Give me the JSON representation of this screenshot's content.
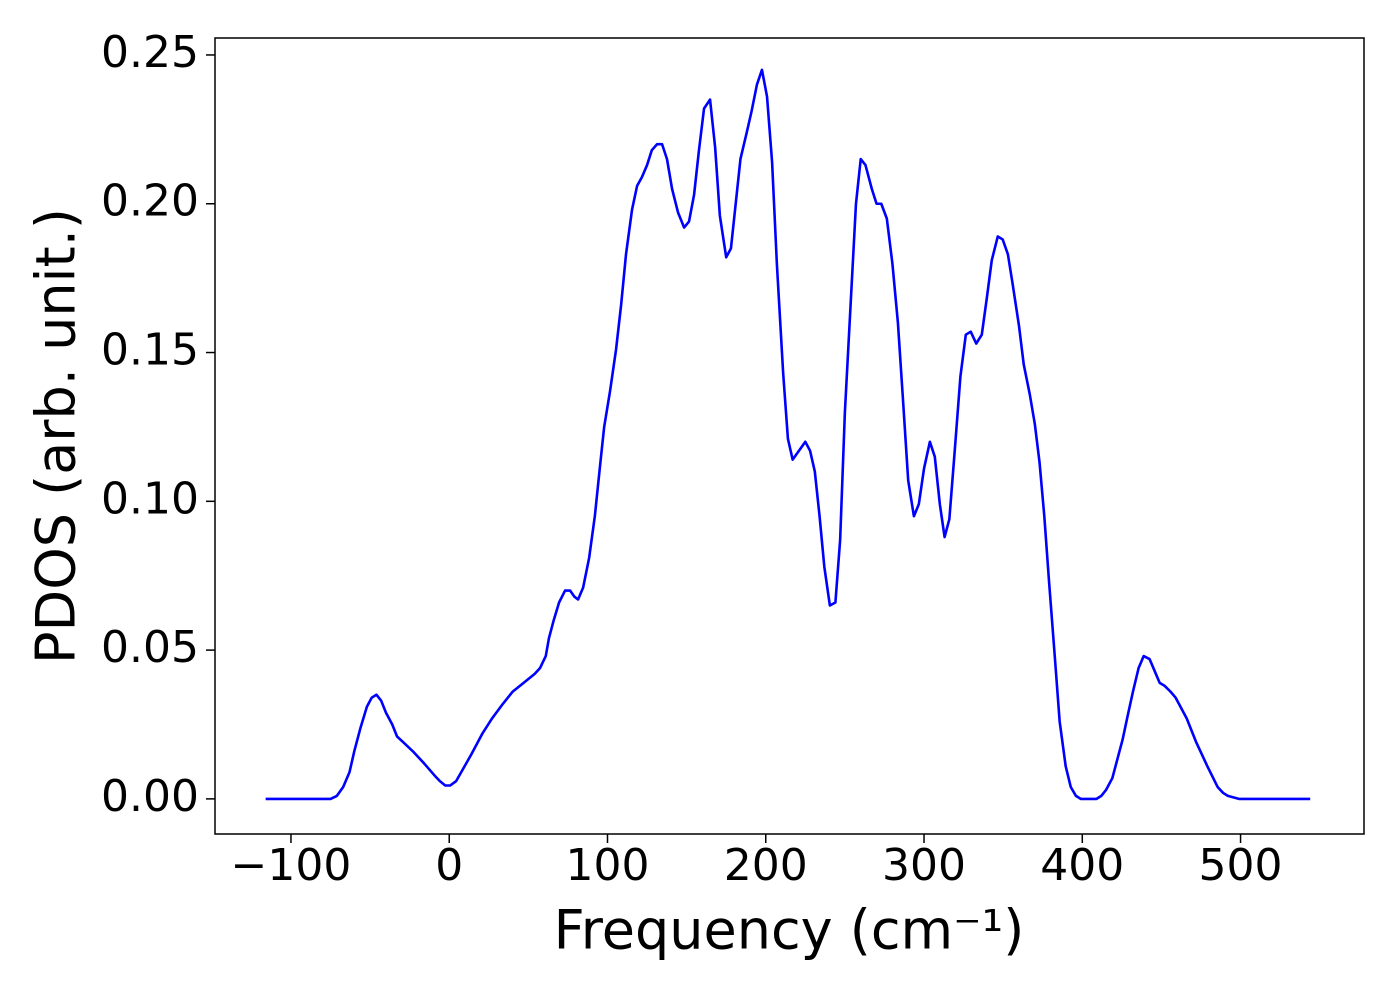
{
  "chart_data": {
    "type": "line",
    "xlabel": "Frequency (cm⁻¹)",
    "ylabel": "PDOS (arb. unit.)",
    "color": "#0000ff",
    "xlim": [
      -148,
      578
    ],
    "ylim": [
      -0.0118,
      0.2557
    ],
    "xticks": [
      {
        "value": -100,
        "label": "−100"
      },
      0,
      100,
      200,
      300,
      400,
      500
    ],
    "yticks": [
      {
        "value": 0,
        "label": "0.00"
      },
      {
        "value": 0.05,
        "label": "0.05"
      },
      {
        "value": 0.1,
        "label": "0.10"
      },
      {
        "value": 0.15,
        "label": "0.15"
      },
      {
        "value": 0.2,
        "label": "0.20"
      },
      {
        "value": 0.25,
        "label": "0.25"
      }
    ],
    "grid": false,
    "x": [
      -116,
      -75,
      -71,
      -67,
      -63,
      -60,
      -56,
      -52,
      -49,
      -46,
      -43,
      -40,
      -36,
      -33,
      -29,
      -23,
      -16,
      -9.5,
      -6,
      -2.5,
      0.6,
      4.4,
      7.6,
      14,
      21,
      27,
      34,
      40,
      47,
      54,
      57.4,
      61,
      63,
      66,
      69.4,
      73.2,
      76.4,
      79,
      81.4,
      84.6,
      88.4,
      92,
      95.3,
      97.9,
      101.6,
      105.4,
      108.6,
      111.7,
      115.5,
      118.7,
      121.8,
      125,
      128,
      131.3,
      134.5,
      137.6,
      140.8,
      144.6,
      148.4,
      151.5,
      154.7,
      157.8,
      161,
      164.8,
      168,
      171,
      175,
      178,
      181,
      184,
      188,
      191,
      194.4,
      197.6,
      200.8,
      204,
      207,
      211,
      214,
      217,
      225,
      228,
      231,
      234,
      237,
      240.5,
      244,
      247,
      250,
      254,
      257,
      260,
      263,
      267,
      270,
      273,
      276.5,
      280,
      283.5,
      286.6,
      290,
      293.6,
      296.7,
      300,
      303.7,
      306.8,
      310,
      313,
      316,
      319.4,
      323,
      326.4,
      329.5,
      333,
      336.5,
      339.6,
      342.8,
      346.6,
      349.7,
      353,
      356,
      360,
      363,
      366.8,
      370,
      373,
      376,
      379,
      382.6,
      385.7,
      389.5,
      392.7,
      396,
      399,
      409,
      412,
      415,
      419,
      422,
      425.5,
      428.7,
      432,
      435.6,
      438.8,
      442.5,
      445.7,
      448.9,
      452,
      455.8,
      459,
      462,
      466,
      472,
      479,
      485.5,
      489,
      492,
      499,
      544
    ],
    "values": [
      0,
      0,
      0.001,
      0.004,
      0.009,
      0.016,
      0.024,
      0.031,
      0.034,
      0.035,
      0.033,
      0.029,
      0.025,
      0.021,
      0.019,
      0.016,
      0.012,
      0.008,
      0.006,
      0.0045,
      0.0045,
      0.006,
      0.009,
      0.015,
      0.022,
      0.027,
      0.032,
      0.036,
      0.039,
      0.042,
      0.044,
      0.048,
      0.054,
      0.06,
      0.066,
      0.07,
      0.07,
      0.068,
      0.067,
      0.071,
      0.081,
      0.095,
      0.112,
      0.125,
      0.137,
      0.151,
      0.166,
      0.183,
      0.198,
      0.206,
      0.209,
      0.213,
      0.218,
      0.22,
      0.22,
      0.215,
      0.205,
      0.197,
      0.192,
      0.194,
      0.203,
      0.218,
      0.232,
      0.235,
      0.219,
      0.196,
      0.182,
      0.185,
      0.2,
      0.215,
      0.224,
      0.231,
      0.24,
      0.245,
      0.236,
      0.214,
      0.18,
      0.143,
      0.121,
      0.114,
      0.12,
      0.117,
      0.11,
      0.095,
      0.078,
      0.065,
      0.066,
      0.087,
      0.13,
      0.17,
      0.2,
      0.215,
      0.213,
      0.205,
      0.2,
      0.2,
      0.195,
      0.18,
      0.16,
      0.135,
      0.107,
      0.095,
      0.099,
      0.111,
      0.12,
      0.115,
      0.099,
      0.088,
      0.094,
      0.117,
      0.142,
      0.156,
      0.157,
      0.153,
      0.156,
      0.168,
      0.181,
      0.189,
      0.188,
      0.183,
      0.173,
      0.159,
      0.146,
      0.136,
      0.126,
      0.113,
      0.095,
      0.073,
      0.048,
      0.026,
      0.011,
      0.004,
      0.001,
      0,
      0,
      0.001,
      0.003,
      0.007,
      0.013,
      0.02,
      0.028,
      0.036,
      0.044,
      0.048,
      0.047,
      0.043,
      0.039,
      0.038,
      0.036,
      0.034,
      0.031,
      0.027,
      0.019,
      0.011,
      0.004,
      0.002,
      0.001,
      0,
      0
    ]
  }
}
